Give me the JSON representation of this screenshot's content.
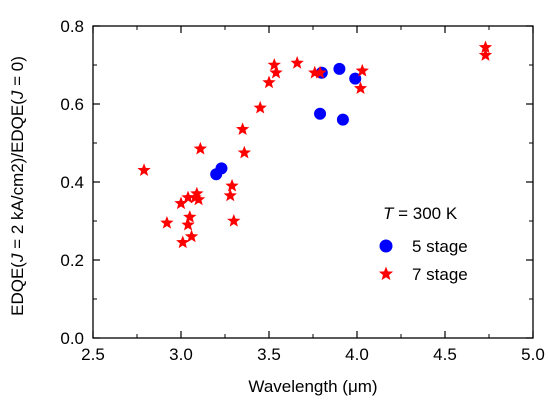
{
  "chart_data": {
    "type": "scatter",
    "xlabel": "Wavelength (μm)",
    "ylabel": "EDQE(J = 2 kA/cm2)/EDQE(J = 0)",
    "xlim": [
      2.5,
      5.0
    ],
    "ylim": [
      0.0,
      0.8
    ],
    "x_ticks": [
      "2.5",
      "3.0",
      "3.5",
      "4.0",
      "4.5",
      "5.0"
    ],
    "y_ticks": [
      "0.0",
      "0.2",
      "0.4",
      "0.6",
      "0.8"
    ],
    "grid": false,
    "legend": {
      "placement": "bottom-right",
      "title": "T = 300 K"
    },
    "series": [
      {
        "name": "5 stage",
        "marker": "circle",
        "color": "#0000ff",
        "points": [
          {
            "x": 3.2,
            "y": 0.42
          },
          {
            "x": 3.23,
            "y": 0.435
          },
          {
            "x": 3.79,
            "y": 0.575
          },
          {
            "x": 3.8,
            "y": 0.68
          },
          {
            "x": 3.9,
            "y": 0.69
          },
          {
            "x": 3.92,
            "y": 0.56
          },
          {
            "x": 3.99,
            "y": 0.665
          }
        ]
      },
      {
        "name": "7 stage",
        "marker": "star",
        "color": "#ff0000",
        "points": [
          {
            "x": 2.79,
            "y": 0.43
          },
          {
            "x": 2.92,
            "y": 0.295
          },
          {
            "x": 3.0,
            "y": 0.345
          },
          {
            "x": 3.01,
            "y": 0.245
          },
          {
            "x": 3.04,
            "y": 0.36
          },
          {
            "x": 3.04,
            "y": 0.29
          },
          {
            "x": 3.05,
            "y": 0.31
          },
          {
            "x": 3.06,
            "y": 0.26
          },
          {
            "x": 3.08,
            "y": 0.36
          },
          {
            "x": 3.09,
            "y": 0.37
          },
          {
            "x": 3.1,
            "y": 0.355
          },
          {
            "x": 3.11,
            "y": 0.485
          },
          {
            "x": 3.28,
            "y": 0.365
          },
          {
            "x": 3.29,
            "y": 0.39
          },
          {
            "x": 3.3,
            "y": 0.3
          },
          {
            "x": 3.35,
            "y": 0.535
          },
          {
            "x": 3.36,
            "y": 0.475
          },
          {
            "x": 3.45,
            "y": 0.59
          },
          {
            "x": 3.5,
            "y": 0.655
          },
          {
            "x": 3.53,
            "y": 0.7
          },
          {
            "x": 3.54,
            "y": 0.68
          },
          {
            "x": 3.66,
            "y": 0.705
          },
          {
            "x": 3.76,
            "y": 0.68
          },
          {
            "x": 3.79,
            "y": 0.68
          },
          {
            "x": 4.02,
            "y": 0.64
          },
          {
            "x": 4.03,
            "y": 0.685
          },
          {
            "x": 4.73,
            "y": 0.745
          },
          {
            "x": 4.73,
            "y": 0.725
          }
        ]
      }
    ]
  }
}
